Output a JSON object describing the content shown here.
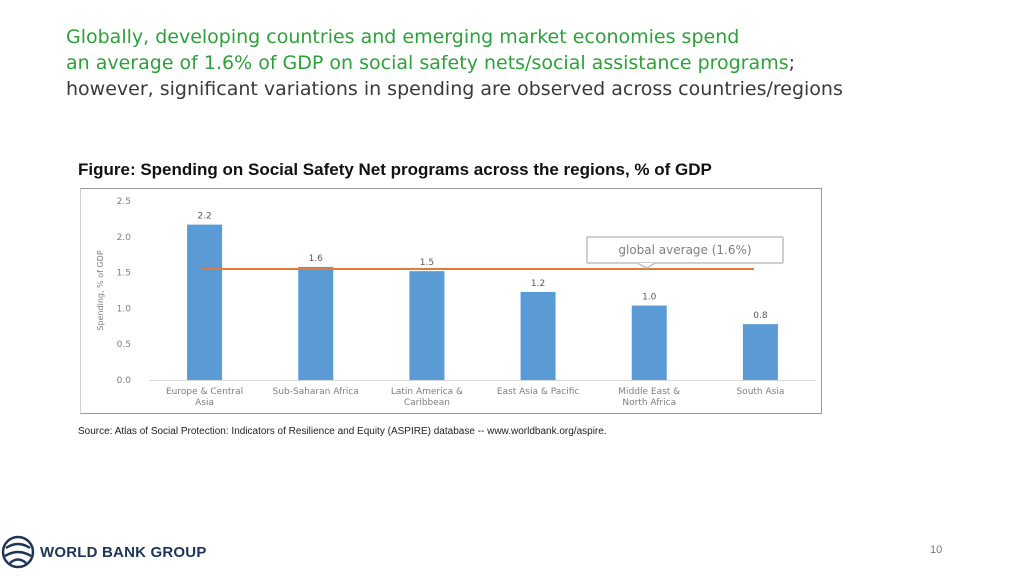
{
  "slide": {
    "headline_green_1": "Globally, developing countries and emerging market economies spend",
    "headline_green_2": "an average of 1.6% of GDP on social safety nets/social assistance programs",
    "headline_rest_2": ";",
    "headline_rest_3": "however, significant variations in spending are observed across countries/regions",
    "figure_title": "Figure: Spending on Social Safety Net programs across the regions, % of GDP",
    "source": "Source: Atlas of Social Protection: Indicators of Resilience and Equity (ASPIRE) database -- www.worldbank.org/aspire.",
    "logo_text": "WORLD BANK GROUP",
    "page_number": "10"
  },
  "colors": {
    "headline_green": "#2f9e3c",
    "bar": "#5b9bd5",
    "average_line": "#e07b39",
    "logo_navy": "#1d3557"
  },
  "chart_data": {
    "type": "bar",
    "categories": [
      [
        "Europe & Central",
        "Asia"
      ],
      [
        "Sub-Saharan Africa"
      ],
      [
        "Latin America &",
        "Caribbean"
      ],
      [
        "East Asia & Pacific"
      ],
      [
        "Middle East &",
        "North Africa"
      ],
      [
        "South Asia"
      ]
    ],
    "values": [
      2.17,
      1.58,
      1.52,
      1.23,
      1.04,
      0.78
    ],
    "data_labels": [
      "2.2",
      "1.6",
      "1.5",
      "1.2",
      "1.0",
      "0.8"
    ],
    "ylabel": "Spending, % of GDP",
    "ylim": [
      0,
      2.5
    ],
    "yticks": [
      "0.0",
      "0.5",
      "1.0",
      "1.5",
      "2.0",
      "2.5"
    ],
    "reference_line": {
      "value": 1.55,
      "label": "global average (1.6%)"
    },
    "grid": false
  }
}
